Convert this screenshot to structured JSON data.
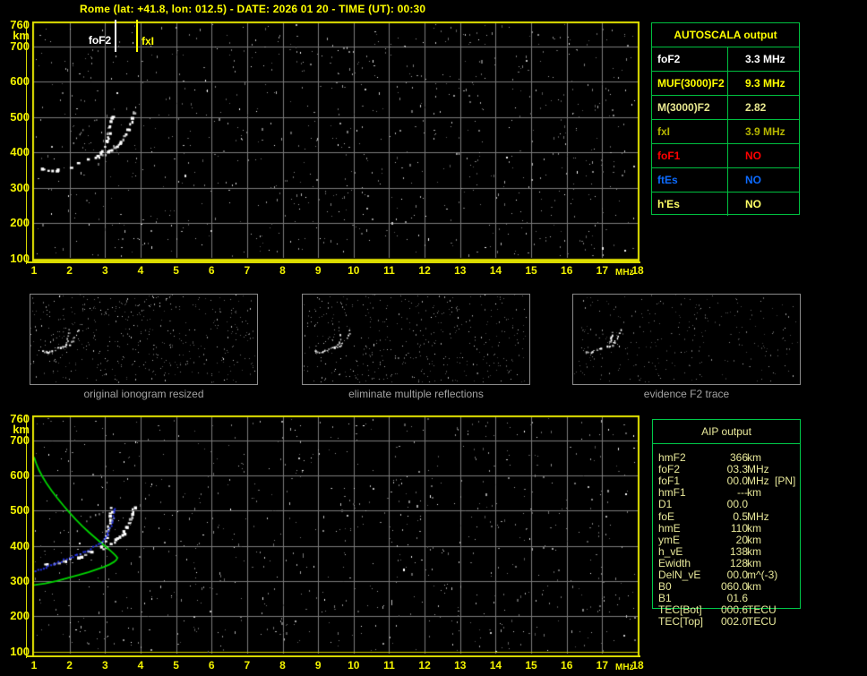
{
  "title": "Rome (lat: +41.8, lon: 012.5) - DATE: 2026 01 20 - TIME (UT): 00:30",
  "colors": {
    "background": "#000000",
    "axis_yellow": "#f2f200",
    "grid_gray": "#7a7a7a",
    "frame_yellow": "#e0e000",
    "table_border_green": "#00c040",
    "aip_border_green": "#00c94a",
    "aip_text": "#e8e89a",
    "profile_green": "#00d400",
    "restored_trace_blue": "#2433e8",
    "caption_gray": "#a2a2a2"
  },
  "autoscala_table": {
    "header": "AUTOSCALA output",
    "rows": [
      {
        "label": "foF2",
        "value": "3.3 MHz",
        "color": "#ffffff"
      },
      {
        "label": "MUF(3000)F2",
        "value": "9.3 MHz",
        "color": "#ffff00"
      },
      {
        "label": "M(3000)F2",
        "value": "2.82",
        "color": "#e8e890"
      },
      {
        "label": "fxI",
        "value": "3.9 MHz",
        "color": "#b5b500"
      },
      {
        "label": "foF1",
        "value": "NO",
        "color": "#ff0000"
      },
      {
        "label": "ftEs",
        "value": "NO",
        "color": "#0d6bff"
      },
      {
        "label": "h'Es",
        "value": "NO",
        "color": "#ffff66"
      }
    ]
  },
  "aip_table": {
    "header": "AIP output",
    "rows": [
      {
        "label": "hmF2",
        "value": "366",
        "unit": "km",
        "note": ""
      },
      {
        "label": "foF2",
        "value": "03.3",
        "unit": "MHz",
        "note": ""
      },
      {
        "label": "foF1",
        "value": "00.0",
        "unit": "MHz",
        "note": "[PN]"
      },
      {
        "label": "hmF1",
        "value": "---",
        "unit": "km",
        "note": ""
      },
      {
        "label": "D1",
        "value": "00.0",
        "unit": "",
        "note": ""
      },
      {
        "label": "foE",
        "value": "0.5",
        "unit": "MHz",
        "note": ""
      },
      {
        "label": "hmE",
        "value": "110",
        "unit": "km",
        "note": ""
      },
      {
        "label": "ymE",
        "value": "20",
        "unit": "km",
        "note": ""
      },
      {
        "label": "h_vE",
        "value": "138",
        "unit": "km",
        "note": ""
      },
      {
        "label": "Ewidth",
        "value": "128",
        "unit": "km",
        "note": ""
      },
      {
        "label": "DelN_vE",
        "value": "00.0",
        "unit": "m^(-3)",
        "note": ""
      },
      {
        "label": "B0",
        "value": "060.0",
        "unit": "km",
        "note": ""
      },
      {
        "label": "B1",
        "value": "01.6",
        "unit": "",
        "note": ""
      },
      {
        "label": "TEC[Bot]",
        "value": "000.6",
        "unit": "TECU",
        "note": ""
      },
      {
        "label": "TEC[Top]",
        "value": "002.0",
        "unit": "TECU",
        "note": ""
      }
    ]
  },
  "thumbnails": [
    {
      "caption": "original ionogram resized"
    },
    {
      "caption": "eliminate multiple reflections"
    },
    {
      "caption": "evidence F2 trace"
    }
  ],
  "chart_data": [
    {
      "type": "scatter",
      "name": "scaled ionogram with AUTOSCALA markers",
      "xlabel": "MHz",
      "ylabel": "km",
      "xlim": [
        1,
        18
      ],
      "ylim": [
        100,
        760
      ],
      "x_ticks": [
        "1",
        "2",
        "3",
        "4",
        "5",
        "6",
        "7",
        "8",
        "9",
        "10",
        "11",
        "12",
        "13",
        "14",
        "15",
        "16",
        "17",
        "18"
      ],
      "y_ticks": [
        "760",
        "700",
        "600",
        "500",
        "400",
        "300",
        "200",
        "100"
      ],
      "grid": true,
      "markers": [
        {
          "label": "foF2",
          "freq_mhz": 3.3,
          "color": "#ffffff"
        },
        {
          "label": "fxI",
          "freq_mhz": 3.9,
          "color": "#ffff00"
        }
      ],
      "series": [
        {
          "name": "F2-trace-o-mode",
          "style": "blobs",
          "color": "#ffffff",
          "points": [
            [
              1.2,
              352
            ],
            [
              1.3,
              350
            ],
            [
              1.4,
              349
            ],
            [
              1.5,
              348
            ],
            [
              1.6,
              350
            ],
            [
              1.7,
              352
            ],
            [
              1.8,
              355
            ],
            [
              1.9,
              358
            ],
            [
              2.0,
              361
            ],
            [
              2.1,
              364
            ],
            [
              2.2,
              368
            ],
            [
              2.3,
              372
            ],
            [
              2.4,
              376
            ],
            [
              2.5,
              380
            ],
            [
              2.6,
              384
            ],
            [
              2.7,
              388
            ],
            [
              2.8,
              393
            ],
            [
              2.9,
              400
            ],
            [
              2.95,
              407
            ],
            [
              3.0,
              416
            ],
            [
              3.05,
              428
            ],
            [
              3.08,
              440
            ],
            [
              3.1,
              452
            ],
            [
              3.12,
              465
            ],
            [
              3.14,
              478
            ],
            [
              3.16,
              492
            ],
            [
              3.17,
              505
            ],
            [
              3.18,
              515
            ]
          ]
        },
        {
          "name": "F2-trace-x-mode",
          "style": "blobs",
          "color": "#ffffff",
          "points": [
            [
              2.85,
              386
            ],
            [
              2.95,
              391
            ],
            [
              3.05,
              397
            ],
            [
              3.15,
              404
            ],
            [
              3.25,
              412
            ],
            [
              3.35,
              421
            ],
            [
              3.45,
              432
            ],
            [
              3.55,
              444
            ],
            [
              3.62,
              456
            ],
            [
              3.68,
              468
            ],
            [
              3.73,
              481
            ],
            [
              3.78,
              495
            ],
            [
              3.82,
              508
            ],
            [
              3.86,
              520
            ]
          ]
        },
        {
          "name": "spread-echoes",
          "style": "sparse",
          "color": "#d8d8d8",
          "points": [
            [
              2.1,
              430
            ],
            [
              2.2,
              444
            ],
            [
              2.3,
              457
            ],
            [
              2.4,
              468
            ],
            [
              2.5,
              478
            ],
            [
              2.62,
              487
            ],
            [
              2.75,
              494
            ],
            [
              2.88,
              500
            ],
            [
              3.0,
              505
            ]
          ]
        }
      ]
    },
    {
      "type": "scatter",
      "name": "AIP profile inversion",
      "xlabel": "MHz",
      "ylabel": "km",
      "xlim": [
        1,
        18
      ],
      "ylim": [
        100,
        760
      ],
      "x_ticks": [
        "1",
        "2",
        "3",
        "4",
        "5",
        "6",
        "7",
        "8",
        "9",
        "10",
        "11",
        "12",
        "13",
        "14",
        "15",
        "16",
        "17",
        "18"
      ],
      "y_ticks": [
        "760",
        "700",
        "600",
        "500",
        "400",
        "300",
        "200",
        "100"
      ],
      "grid": true,
      "markers": [],
      "series": [
        {
          "name": "F2-trace-o-mode",
          "style": "blobs",
          "color": "#ffffff",
          "points": [
            [
              1.2,
              352
            ],
            [
              1.3,
              350
            ],
            [
              1.4,
              349
            ],
            [
              1.5,
              348
            ],
            [
              1.6,
              350
            ],
            [
              1.7,
              352
            ],
            [
              1.8,
              355
            ],
            [
              1.9,
              358
            ],
            [
              2.0,
              361
            ],
            [
              2.1,
              364
            ],
            [
              2.2,
              368
            ],
            [
              2.3,
              372
            ],
            [
              2.4,
              376
            ],
            [
              2.5,
              380
            ],
            [
              2.6,
              384
            ],
            [
              2.7,
              388
            ],
            [
              2.8,
              393
            ],
            [
              2.9,
              400
            ],
            [
              2.95,
              407
            ],
            [
              3.0,
              416
            ],
            [
              3.05,
              428
            ],
            [
              3.08,
              440
            ],
            [
              3.1,
              452
            ],
            [
              3.12,
              465
            ],
            [
              3.14,
              478
            ],
            [
              3.16,
              492
            ],
            [
              3.17,
              505
            ],
            [
              3.18,
              515
            ]
          ]
        },
        {
          "name": "F2-trace-x-mode",
          "style": "blobs",
          "color": "#ffffff",
          "points": [
            [
              2.85,
              386
            ],
            [
              2.95,
              391
            ],
            [
              3.05,
              397
            ],
            [
              3.15,
              404
            ],
            [
              3.25,
              412
            ],
            [
              3.35,
              421
            ],
            [
              3.45,
              432
            ],
            [
              3.55,
              444
            ],
            [
              3.62,
              456
            ],
            [
              3.68,
              468
            ],
            [
              3.73,
              481
            ],
            [
              3.78,
              495
            ],
            [
              3.82,
              508
            ],
            [
              3.86,
              520
            ]
          ]
        },
        {
          "name": "spread-echoes",
          "style": "sparse",
          "color": "#d8d8d8",
          "points": [
            [
              2.1,
              430
            ],
            [
              2.2,
              444
            ],
            [
              2.3,
              457
            ],
            [
              2.4,
              468
            ],
            [
              2.5,
              478
            ],
            [
              2.62,
              487
            ],
            [
              2.75,
              494
            ],
            [
              2.88,
              500
            ],
            [
              3.0,
              505
            ]
          ]
        },
        {
          "name": "electron-density-profile",
          "style": "line",
          "color": "#00d400",
          "points": [
            [
              1.0,
              652
            ],
            [
              1.06,
              634
            ],
            [
              1.14,
              615
            ],
            [
              1.24,
              596
            ],
            [
              1.36,
              576
            ],
            [
              1.5,
              556
            ],
            [
              1.66,
              535
            ],
            [
              1.83,
              514
            ],
            [
              2.0,
              494
            ],
            [
              2.18,
              474
            ],
            [
              2.36,
              456
            ],
            [
              2.54,
              439
            ],
            [
              2.72,
              423
            ],
            [
              2.88,
              409
            ],
            [
              3.02,
              397
            ],
            [
              3.14,
              387
            ],
            [
              3.23,
              379
            ],
            [
              3.3,
              372
            ],
            [
              3.34,
              367
            ],
            [
              3.35,
              366
            ],
            [
              3.32,
              360
            ],
            [
              3.25,
              354
            ],
            [
              3.13,
              347
            ],
            [
              2.97,
              340
            ],
            [
              2.77,
              333
            ],
            [
              2.53,
              325
            ],
            [
              2.26,
              317
            ],
            [
              1.96,
              309
            ],
            [
              1.64,
              300
            ],
            [
              1.32,
              293
            ],
            [
              1.05,
              289
            ],
            [
              0.96,
              288
            ]
          ]
        },
        {
          "name": "restored-trace",
          "style": "dots",
          "color": "#2433e8",
          "points": [
            [
              0.95,
              322
            ],
            [
              1.1,
              329
            ],
            [
              1.25,
              335
            ],
            [
              1.4,
              341
            ],
            [
              1.55,
              347
            ],
            [
              1.7,
              353
            ],
            [
              1.85,
              359
            ],
            [
              2.0,
              365
            ],
            [
              2.15,
              371
            ],
            [
              2.3,
              377
            ],
            [
              2.45,
              384
            ],
            [
              2.6,
              391
            ],
            [
              2.75,
              399
            ],
            [
              2.88,
              408
            ],
            [
              2.98,
              418
            ],
            [
              3.06,
              430
            ],
            [
              3.12,
              443
            ],
            [
              3.17,
              457
            ],
            [
              3.21,
              471
            ],
            [
              3.25,
              486
            ],
            [
              3.28,
              500
            ],
            [
              3.3,
              512
            ]
          ]
        }
      ]
    }
  ]
}
